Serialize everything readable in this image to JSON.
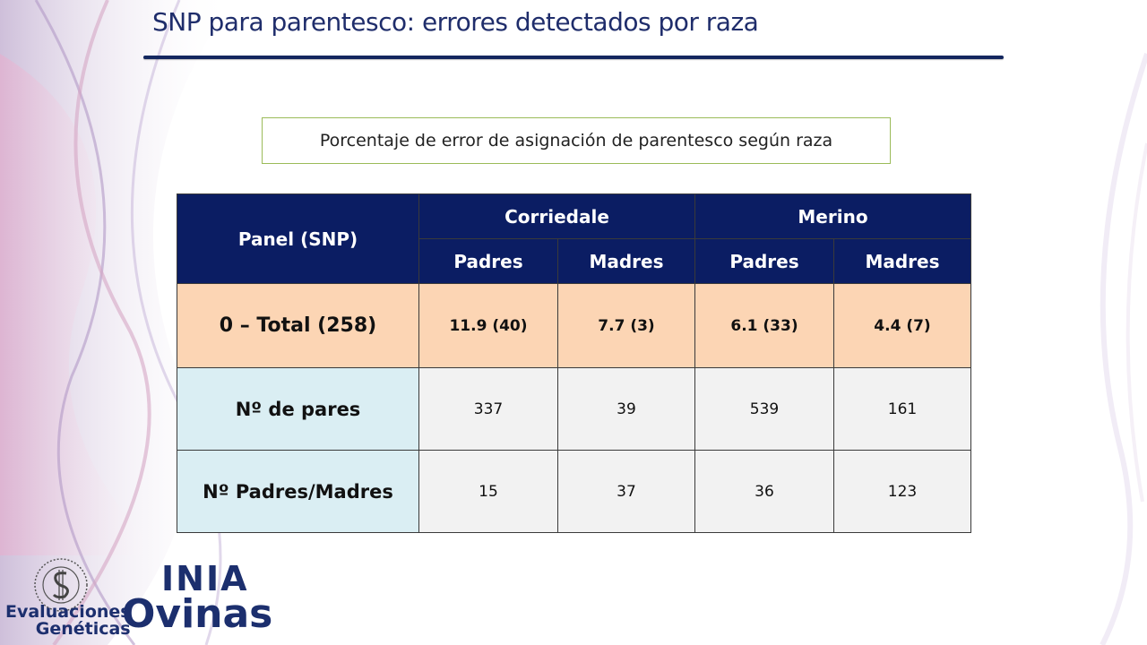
{
  "slide": {
    "title": "SNP para parentesco: errores detectados por raza",
    "caption": "Porcentaje de error de asignación de parentesco según raza"
  },
  "table": {
    "corner_header": "Panel (SNP)",
    "groups": [
      "Corriedale",
      "Merino"
    ],
    "subheaders": [
      "Padres",
      "Madres",
      "Padres",
      "Madres"
    ],
    "rows": [
      {
        "label": "0 – Total (258)",
        "values": [
          "11.9 (40)",
          "7.7 (3)",
          "6.1 (33)",
          "4.4 (7)"
        ]
      },
      {
        "label": "Nº de pares",
        "values": [
          "337",
          "39",
          "539",
          "161"
        ]
      },
      {
        "label": "Nº Padres/Madres",
        "values": [
          "15",
          "37",
          "36",
          "123"
        ]
      }
    ]
  },
  "logos": {
    "inia": "INIA",
    "eval_line1": "Evaluaciones",
    "eval_line2": "Genéticas",
    "ovinas": "Ovinas"
  },
  "colors": {
    "title": "#1f2d6b",
    "header_bg": "#0b1d63",
    "total_row_bg": "#fcd5b4",
    "label_bg": "#daeef3",
    "cell_bg": "#f2f2f2",
    "caption_border": "#9bbb59"
  }
}
